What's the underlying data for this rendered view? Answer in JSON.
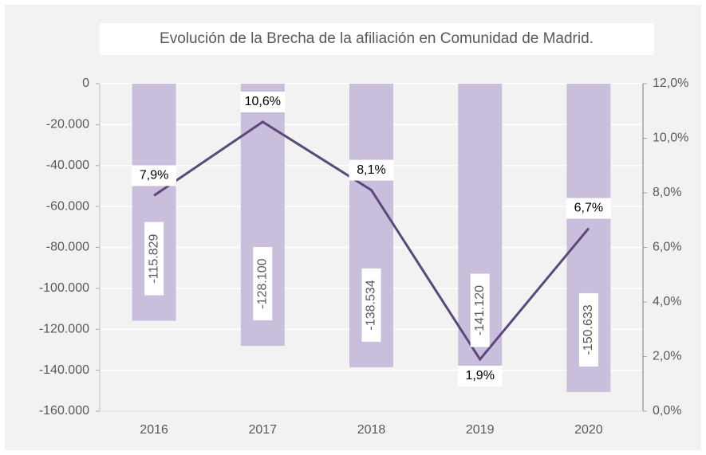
{
  "chart_data": {
    "type": "bar-line",
    "title": "Evolución de la Brecha de la afiliación en Comunidad de Madrid.",
    "categories": [
      "2016",
      "2017",
      "2018",
      "2019",
      "2020"
    ],
    "series": [
      {
        "type": "bar",
        "color": "#c9bfdc",
        "values": [
          -115829,
          -128100,
          -138534,
          -141120,
          -150633
        ],
        "value_labels": [
          "-115.829",
          "-128.100",
          "-138.534",
          "-141.120",
          "-150.633"
        ]
      },
      {
        "type": "line",
        "axis": "y2",
        "color": "#5a4a7c",
        "values": [
          7.9,
          10.6,
          8.1,
          1.9,
          6.7
        ],
        "value_labels": [
          "7,9%",
          "10,6%",
          "8,1%",
          "1,9%",
          "6,7%"
        ]
      }
    ],
    "ylim": [
      -160000,
      0
    ],
    "yticks": [
      0,
      {
        "value": -20000,
        "label": "-20.000"
      },
      {
        "value": -40000,
        "label": "-40.000"
      },
      {
        "value": -60000,
        "label": "-60.000"
      },
      {
        "value": -80000,
        "label": "-80.000"
      },
      {
        "value": -100000,
        "label": "-100.000"
      },
      {
        "value": -120000,
        "label": "-120.000"
      },
      {
        "value": -140000,
        "label": "-140.000"
      },
      {
        "value": -160000,
        "label": "-160.000"
      }
    ],
    "y2lim": [
      0,
      12
    ],
    "y2ticks": [
      {
        "value": 0,
        "label": "0,0%"
      },
      {
        "value": 2,
        "label": "2,0%"
      },
      {
        "value": 4,
        "label": "4,0%"
      },
      {
        "value": 6,
        "label": "6,0%"
      },
      {
        "value": 8,
        "label": "8,0%"
      },
      {
        "value": 10,
        "label": "10,0%"
      },
      {
        "value": 12,
        "label": "12,0%"
      }
    ],
    "grid": true
  }
}
